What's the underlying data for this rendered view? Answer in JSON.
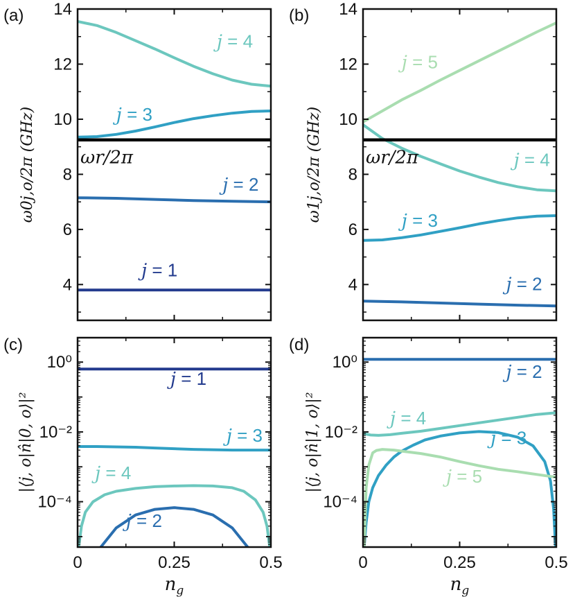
{
  "colors": {
    "j1": "#233b8e",
    "j2": "#2a6eaf",
    "j3": "#30a0c4",
    "j4": "#6cc7be",
    "j5": "#a9ddb0",
    "resonator": "#000000"
  },
  "chart_data": [
    {
      "panel": "(a)",
      "type": "line",
      "xlim": [
        0,
        0.5
      ],
      "ylim": [
        2.7,
        14
      ],
      "yticks": [
        "4",
        "6",
        "8",
        "10",
        "12",
        "14"
      ],
      "ylabel": "ω0j,o/2π (GHz)",
      "resonator": {
        "value": 9.25,
        "label": "ωr/2π"
      },
      "series": [
        {
          "name": "j = 1",
          "color_key": "j1",
          "x": [
            0,
            0.1,
            0.2,
            0.3,
            0.4,
            0.5
          ],
          "y": [
            3.8,
            3.8,
            3.8,
            3.8,
            3.8,
            3.8
          ],
          "label_at": [
            0.165,
            4.3
          ]
        },
        {
          "name": "j = 2",
          "color_key": "j2",
          "x": [
            0,
            0.1,
            0.2,
            0.3,
            0.4,
            0.5
          ],
          "y": [
            7.15,
            7.13,
            7.09,
            7.05,
            7.02,
            7.0
          ],
          "label_at": [
            0.375,
            7.4
          ]
        },
        {
          "name": "j = 3",
          "color_key": "j3",
          "x": [
            0,
            0.05,
            0.1,
            0.15,
            0.2,
            0.25,
            0.3,
            0.35,
            0.4,
            0.45,
            0.5
          ],
          "y": [
            9.35,
            9.37,
            9.45,
            9.57,
            9.72,
            9.88,
            10.02,
            10.13,
            10.22,
            10.28,
            10.3
          ],
          "label_at": [
            0.1,
            9.95
          ]
        },
        {
          "name": "j = 4",
          "color_key": "j4",
          "x": [
            0,
            0.05,
            0.1,
            0.15,
            0.2,
            0.25,
            0.3,
            0.35,
            0.4,
            0.45,
            0.5
          ],
          "y": [
            13.55,
            13.4,
            13.15,
            12.85,
            12.55,
            12.23,
            11.92,
            11.65,
            11.42,
            11.27,
            11.2
          ],
          "label_at": [
            0.36,
            12.6
          ]
        }
      ]
    },
    {
      "panel": "(b)",
      "type": "line",
      "xlim": [
        0,
        0.5
      ],
      "ylim": [
        2.7,
        14
      ],
      "yticks": [
        "4",
        "6",
        "8",
        "10",
        "12",
        "14"
      ],
      "ylabel": "ω1j,o/2π (GHz)",
      "resonator": {
        "value": 9.25,
        "label": "ωr/2π"
      },
      "series": [
        {
          "name": "j = 2",
          "color_key": "j2",
          "x": [
            0,
            0.1,
            0.2,
            0.3,
            0.4,
            0.5
          ],
          "y": [
            3.4,
            3.37,
            3.33,
            3.29,
            3.25,
            3.22
          ],
          "label_at": [
            0.37,
            3.8
          ]
        },
        {
          "name": "j = 3",
          "color_key": "j3",
          "x": [
            0,
            0.05,
            0.1,
            0.15,
            0.2,
            0.25,
            0.3,
            0.35,
            0.4,
            0.45,
            0.5
          ],
          "y": [
            5.6,
            5.62,
            5.7,
            5.8,
            5.93,
            6.06,
            6.2,
            6.32,
            6.42,
            6.48,
            6.5
          ],
          "label_at": [
            0.1,
            6.1
          ]
        },
        {
          "name": "j = 4",
          "color_key": "j4",
          "x": [
            0,
            0.05,
            0.1,
            0.15,
            0.2,
            0.25,
            0.3,
            0.35,
            0.4,
            0.45,
            0.5
          ],
          "y": [
            9.8,
            9.3,
            8.95,
            8.65,
            8.38,
            8.12,
            7.9,
            7.7,
            7.55,
            7.44,
            7.4
          ],
          "label_at": [
            0.39,
            8.3
          ]
        },
        {
          "name": "j = 5",
          "color_key": "j5",
          "x": [
            0,
            0.05,
            0.1,
            0.15,
            0.2,
            0.25,
            0.3,
            0.35,
            0.4,
            0.45,
            0.5
          ],
          "y": [
            9.9,
            10.3,
            10.7,
            11.05,
            11.42,
            11.77,
            12.12,
            12.47,
            12.82,
            13.17,
            13.5
          ],
          "label_at": [
            0.1,
            11.85
          ]
        }
      ]
    },
    {
      "panel": "(c)",
      "type": "line",
      "yscale": "log",
      "xlim": [
        0,
        0.5
      ],
      "xticks": [
        "0",
        "0.25",
        "0.5"
      ],
      "xlabel": "ng",
      "ylim_log10": [
        -5.3,
        0.7
      ],
      "yticks": [
        "10⁰",
        "10⁻²",
        "10⁻⁴"
      ],
      "ylabel": "|⟨j, o|n̂|0, o⟩|²",
      "series": [
        {
          "name": "j = 1",
          "color_key": "j1",
          "x": [
            0,
            0.1,
            0.2,
            0.3,
            0.4,
            0.5
          ],
          "log10y": [
            -0.2,
            -0.2,
            -0.2,
            -0.2,
            -0.2,
            -0.2
          ],
          "label_at": [
            0.24,
            -0.65
          ]
        },
        {
          "name": "j = 2",
          "color_key": "j2",
          "x": [
            0.06,
            0.1,
            0.15,
            0.2,
            0.25,
            0.3,
            0.35,
            0.4,
            0.44
          ],
          "log10y": [
            -5.3,
            -4.75,
            -4.38,
            -4.22,
            -4.17,
            -4.22,
            -4.38,
            -4.75,
            -5.3
          ],
          "label_at": [
            0.125,
            -4.72
          ]
        },
        {
          "name": "j = 3",
          "color_key": "j3",
          "x": [
            0,
            0.05,
            0.1,
            0.15,
            0.2,
            0.25,
            0.3,
            0.35,
            0.4,
            0.45,
            0.5
          ],
          "log10y": [
            -2.42,
            -2.42,
            -2.43,
            -2.44,
            -2.46,
            -2.48,
            -2.5,
            -2.51,
            -2.52,
            -2.52,
            -2.52
          ],
          "label_at": [
            0.385,
            -2.28
          ]
        },
        {
          "name": "j = 4",
          "color_key": "j4",
          "x": [
            0.003,
            0.01,
            0.02,
            0.04,
            0.07,
            0.1,
            0.15,
            0.2,
            0.25,
            0.3,
            0.35,
            0.4,
            0.43,
            0.46,
            0.48,
            0.49,
            0.497
          ],
          "log10y": [
            -5.3,
            -4.7,
            -4.3,
            -4.0,
            -3.8,
            -3.7,
            -3.62,
            -3.57,
            -3.55,
            -3.54,
            -3.55,
            -3.6,
            -3.7,
            -3.95,
            -4.3,
            -4.7,
            -5.3
          ],
          "label_at": [
            0.045,
            -3.35
          ]
        }
      ]
    },
    {
      "panel": "(d)",
      "type": "line",
      "yscale": "log",
      "xlim": [
        0,
        0.5
      ],
      "xticks": [
        "0",
        "0.25",
        "0.5"
      ],
      "xlabel": "ng",
      "ylim_log10": [
        -5.3,
        0.7
      ],
      "yticks": [
        "10⁰",
        "10⁻²",
        "10⁻⁴"
      ],
      "ylabel": "|⟨j, o|n̂|1, o⟩|²",
      "series": [
        {
          "name": "j = 2",
          "color_key": "j2",
          "x": [
            0,
            0.1,
            0.2,
            0.3,
            0.4,
            0.5
          ],
          "log10y": [
            0.08,
            0.08,
            0.08,
            0.08,
            0.08,
            0.08
          ],
          "label_at": [
            0.37,
            -0.45
          ]
        },
        {
          "name": "j = 3",
          "color_key": "j3",
          "x": [
            0.003,
            0.008,
            0.015,
            0.025,
            0.04,
            0.06,
            0.08,
            0.1,
            0.13,
            0.16,
            0.2,
            0.25,
            0.3,
            0.35,
            0.4,
            0.44,
            0.47,
            0.485,
            0.493,
            0.498
          ],
          "log10y": [
            -5.3,
            -4.6,
            -4.0,
            -3.6,
            -3.25,
            -2.95,
            -2.72,
            -2.55,
            -2.38,
            -2.23,
            -2.12,
            -2.03,
            -1.99,
            -2.02,
            -2.15,
            -2.4,
            -2.85,
            -3.4,
            -4.2,
            -5.3
          ],
          "label_at": [
            0.33,
            -2.35
          ]
        },
        {
          "name": "j = 4",
          "color_key": "j4",
          "x": [
            0,
            0.01,
            0.02,
            0.04,
            0.07,
            0.1,
            0.15,
            0.2,
            0.25,
            0.3,
            0.35,
            0.4,
            0.45,
            0.5
          ],
          "log10y": [
            -2.05,
            -2.07,
            -2.09,
            -2.1,
            -2.08,
            -2.04,
            -1.98,
            -1.9,
            -1.82,
            -1.74,
            -1.66,
            -1.58,
            -1.5,
            -1.45
          ],
          "label_at": [
            0.07,
            -1.78
          ]
        },
        {
          "name": "j = 5",
          "color_key": "j5",
          "x": [
            0.003,
            0.008,
            0.015,
            0.025,
            0.035,
            0.05,
            0.08,
            0.1,
            0.15,
            0.2,
            0.25,
            0.3,
            0.35,
            0.4,
            0.45,
            0.5
          ],
          "log10y": [
            -5.3,
            -3.6,
            -2.95,
            -2.6,
            -2.53,
            -2.5,
            -2.52,
            -2.55,
            -2.62,
            -2.72,
            -2.85,
            -2.97,
            -3.07,
            -3.14,
            -3.22,
            -3.3
          ],
          "label_at": [
            0.215,
            -3.45
          ]
        }
      ]
    }
  ]
}
